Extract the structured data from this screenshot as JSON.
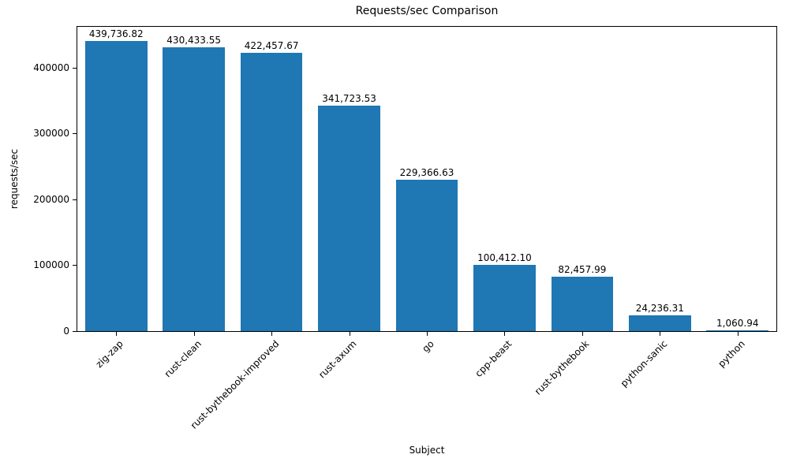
{
  "chart_data": {
    "type": "bar",
    "title": "Requests/sec Comparison",
    "xlabel": "Subject",
    "ylabel": "requests/sec",
    "categories": [
      "zig-zap",
      "rust-clean",
      "rust-bythebook-improved",
      "rust-axum",
      "go",
      "cpp-beast",
      "rust-bythebook",
      "python-sanic",
      "python"
    ],
    "values": [
      439736.82,
      430433.55,
      422457.67,
      341723.53,
      229366.63,
      100412.1,
      82457.99,
      24236.31,
      1060.94
    ],
    "value_labels": [
      "439,736.82",
      "430,433.55",
      "422,457.67",
      "341,723.53",
      "229,366.63",
      "100,412.10",
      "82,457.99",
      "24,236.31",
      "1,060.94"
    ],
    "yticks": [
      0,
      100000,
      200000,
      300000,
      400000
    ],
    "ytick_labels": [
      "0",
      "100000",
      "200000",
      "300000",
      "400000"
    ],
    "ylim": [
      0,
      461724
    ],
    "bar_color": "#1f77b4",
    "grid": false,
    "legend_position": "none"
  }
}
